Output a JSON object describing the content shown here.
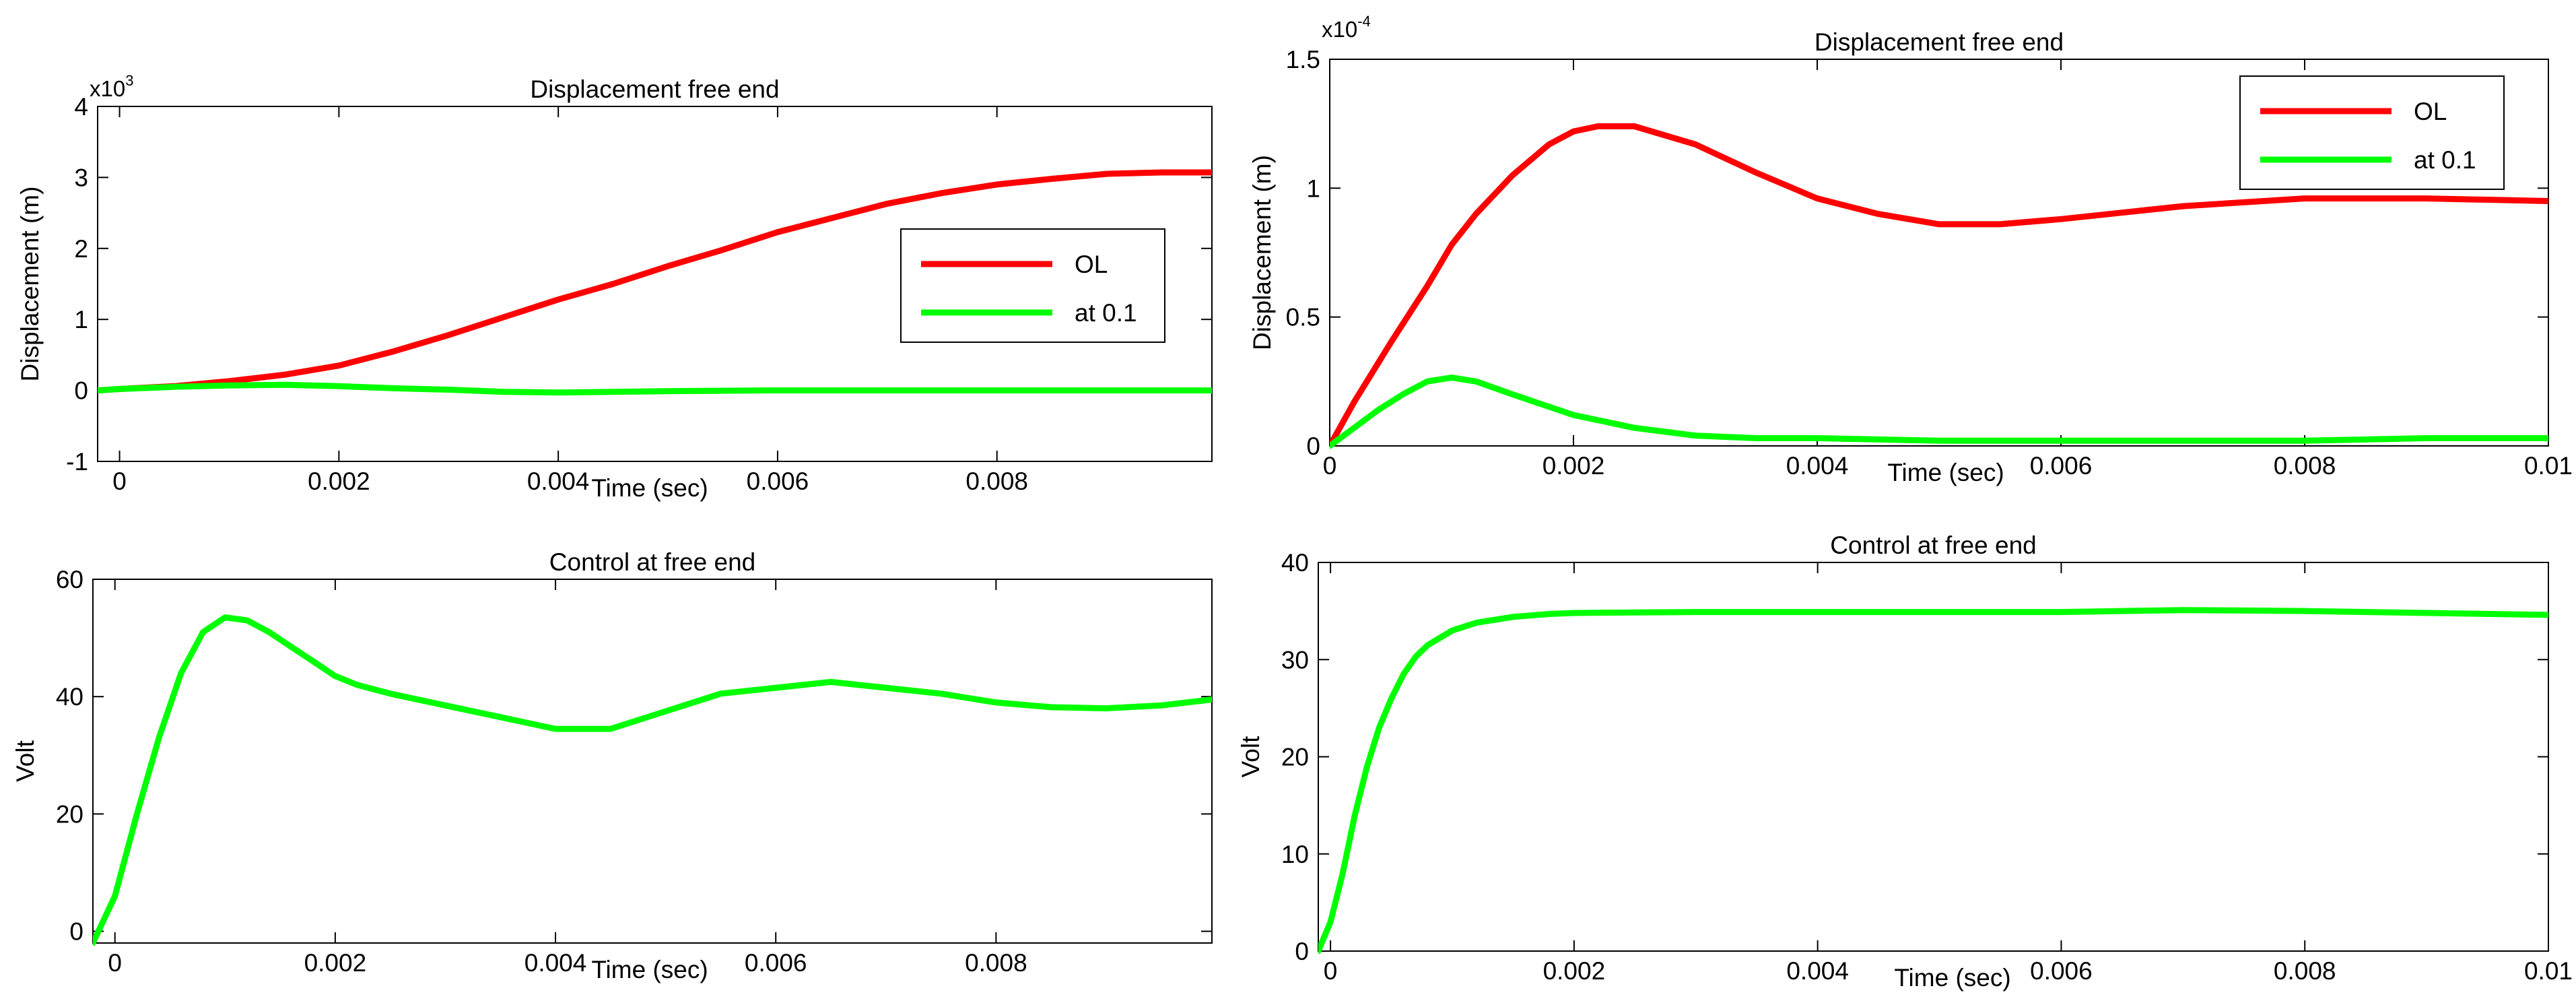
{
  "chart_data": [
    {
      "id": "tl",
      "type": "line",
      "title": "Displacement free end",
      "xlabel": "Time (sec)",
      "ylabel": "Displacement (m)",
      "scale_prefix": "x10",
      "scale_exponent": "3",
      "xlim": [
        -0.0002,
        0.00996
      ],
      "ylim": [
        -1,
        4
      ],
      "xticks": [
        0,
        0.002,
        0.004,
        0.006,
        0.008
      ],
      "xtick_labels": [
        "0",
        "0.002",
        "0.004",
        "0.006",
        "0.008"
      ],
      "yticks": [
        -1,
        0,
        1,
        2,
        3,
        4
      ],
      "ytick_labels": [
        "-1",
        "0",
        "1",
        "2",
        "3",
        "4"
      ],
      "legend": {
        "position": "right",
        "entries": [
          "OL",
          "at 0.1"
        ]
      },
      "series": [
        {
          "name": "OL",
          "color": "#ff0000",
          "x": [
            -0.0002,
            0,
            0.0005,
            0.001,
            0.0015,
            0.002,
            0.0025,
            0.003,
            0.0035,
            0.004,
            0.0045,
            0.005,
            0.0055,
            0.006,
            0.0065,
            0.007,
            0.0075,
            0.008,
            0.0085,
            0.009,
            0.0095,
            0.00996
          ],
          "y": [
            0.0,
            0.02,
            0.06,
            0.13,
            0.22,
            0.35,
            0.55,
            0.78,
            1.03,
            1.28,
            1.5,
            1.75,
            1.98,
            2.23,
            2.43,
            2.63,
            2.78,
            2.9,
            2.98,
            3.05,
            3.07,
            3.07
          ]
        },
        {
          "name": "at 0.1",
          "color": "#00ff00",
          "x": [
            -0.0002,
            0,
            0.0005,
            0.001,
            0.0015,
            0.002,
            0.0025,
            0.003,
            0.0035,
            0.004,
            0.005,
            0.006,
            0.007,
            0.008,
            0.009,
            0.00996
          ],
          "y": [
            0.0,
            0.02,
            0.05,
            0.07,
            0.08,
            0.06,
            0.03,
            0.01,
            -0.02,
            -0.03,
            -0.01,
            0.0,
            0.0,
            0.0,
            0.0,
            0.0
          ]
        }
      ]
    },
    {
      "id": "tr",
      "type": "line",
      "title": "Displacement free end",
      "xlabel": "Time (sec)",
      "ylabel": "Displacement (m)",
      "scale_prefix": "x10",
      "scale_exponent": "-4",
      "xlim": [
        0,
        0.01
      ],
      "ylim": [
        0,
        1.5
      ],
      "xticks": [
        0,
        0.002,
        0.004,
        0.006,
        0.008,
        0.01
      ],
      "xtick_labels": [
        "0",
        "0.002",
        "0.004",
        "0.006",
        "0.008",
        "0.01"
      ],
      "yticks": [
        0,
        0.5,
        1,
        1.5
      ],
      "ytick_labels": [
        "0",
        "0.5",
        "1",
        "1.5"
      ],
      "legend": {
        "position": "top-right",
        "entries": [
          "OL",
          "at 0.1"
        ]
      },
      "series": [
        {
          "name": "OL",
          "color": "#ff0000",
          "x": [
            0,
            0.0002,
            0.0005,
            0.0008,
            0.001,
            0.0012,
            0.0015,
            0.0018,
            0.002,
            0.0022,
            0.0025,
            0.003,
            0.0035,
            0.004,
            0.0045,
            0.005,
            0.0055,
            0.006,
            0.007,
            0.008,
            0.009,
            0.01
          ],
          "y": [
            0,
            0.17,
            0.4,
            0.62,
            0.78,
            0.9,
            1.05,
            1.17,
            1.22,
            1.24,
            1.24,
            1.17,
            1.06,
            0.96,
            0.9,
            0.86,
            0.86,
            0.88,
            0.93,
            0.96,
            0.96,
            0.95
          ]
        },
        {
          "name": "at 0.1",
          "color": "#00ff00",
          "x": [
            0,
            0.0002,
            0.0004,
            0.0006,
            0.0008,
            0.001,
            0.0012,
            0.0015,
            0.002,
            0.0025,
            0.003,
            0.0035,
            0.004,
            0.005,
            0.006,
            0.007,
            0.008,
            0.009,
            0.01
          ],
          "y": [
            0,
            0.07,
            0.14,
            0.2,
            0.25,
            0.265,
            0.25,
            0.2,
            0.12,
            0.07,
            0.04,
            0.03,
            0.03,
            0.02,
            0.02,
            0.02,
            0.02,
            0.03,
            0.03
          ]
        }
      ]
    },
    {
      "id": "bl",
      "type": "line",
      "title": "Control at free end",
      "xlabel": "Time (sec)",
      "ylabel": "Volt",
      "xlim": [
        -0.0002,
        0.00996
      ],
      "ylim": [
        -2,
        60
      ],
      "xticks": [
        0,
        0.002,
        0.004,
        0.006,
        0.008
      ],
      "xtick_labels": [
        "0",
        "0.002",
        "0.004",
        "0.006",
        "0.008"
      ],
      "yticks": [
        0,
        20,
        40,
        60
      ],
      "ytick_labels": [
        "0",
        "20",
        "40",
        "60"
      ],
      "series": [
        {
          "name": "Control",
          "color": "#00ff00",
          "x": [
            -0.0002,
            0,
            0.0002,
            0.0004,
            0.0006,
            0.0008,
            0.001,
            0.0012,
            0.0014,
            0.0016,
            0.0018,
            0.002,
            0.0022,
            0.0025,
            0.003,
            0.0035,
            0.004,
            0.0045,
            0.005,
            0.0055,
            0.006,
            0.0065,
            0.007,
            0.0075,
            0.008,
            0.0085,
            0.009,
            0.0095,
            0.00996
          ],
          "y": [
            -2,
            6,
            20,
            33,
            44,
            51,
            53.5,
            53,
            51,
            48.5,
            46,
            43.5,
            42,
            40.5,
            38.5,
            36.5,
            34.5,
            34.5,
            37.5,
            40.5,
            41.5,
            42.5,
            41.5,
            40.5,
            39,
            38.2,
            38,
            38.5,
            39.5
          ]
        }
      ]
    },
    {
      "id": "br",
      "type": "line",
      "title": "Control at free end",
      "xlabel": "Time (sec)",
      "ylabel": "Volt",
      "xlim": [
        -0.0001,
        0.01
      ],
      "ylim": [
        0,
        40
      ],
      "xticks": [
        0,
        0.002,
        0.004,
        0.006,
        0.008,
        0.01
      ],
      "xtick_labels": [
        "0",
        "0.002",
        "0.004",
        "0.006",
        "0.008",
        "0.01"
      ],
      "yticks": [
        0,
        10,
        20,
        30,
        40
      ],
      "ytick_labels": [
        "0",
        "10",
        "20",
        "30",
        "40"
      ],
      "series": [
        {
          "name": "Control",
          "color": "#00ff00",
          "x": [
            -0.0001,
            0,
            0.0001,
            0.0002,
            0.0003,
            0.0004,
            0.0005,
            0.0006,
            0.0007,
            0.0008,
            0.001,
            0.0012,
            0.0015,
            0.0018,
            0.002,
            0.003,
            0.004,
            0.005,
            0.006,
            0.007,
            0.008,
            0.009,
            0.01
          ],
          "y": [
            0,
            3,
            8,
            14,
            19,
            23,
            26,
            28.5,
            30.3,
            31.5,
            33,
            33.8,
            34.4,
            34.7,
            34.8,
            34.9,
            34.9,
            34.9,
            34.9,
            35.1,
            35,
            34.8,
            34.6
          ]
        }
      ]
    }
  ]
}
